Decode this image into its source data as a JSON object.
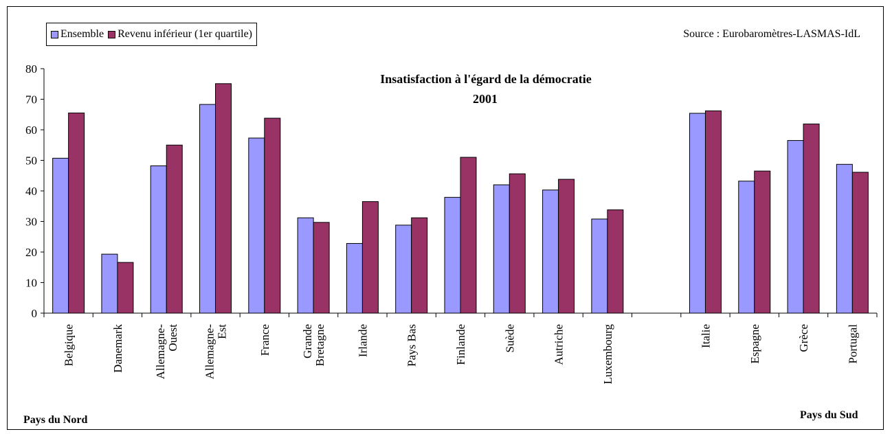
{
  "source": "Source : Eurobaromètres-LASMAS-IdL",
  "group_labels": {
    "north": "Pays du Nord",
    "south": "Pays du Sud"
  },
  "colors": {
    "ensemble": "#9999ff",
    "revenu": "#993366",
    "axis": "#000000"
  },
  "chart_data": {
    "type": "bar",
    "title": "Insatisfaction à l'égard de la démocratie",
    "subtitle": "2001",
    "xlabel": "",
    "ylabel": "",
    "ylim": [
      0,
      80
    ],
    "yticks": [
      0,
      10,
      20,
      30,
      40,
      50,
      60,
      70,
      80
    ],
    "grid": false,
    "legend": "top-left",
    "categories": [
      [
        "Belgique"
      ],
      [
        "Danemark"
      ],
      [
        "Allemagne-",
        "Ouest"
      ],
      [
        "Allemagne-",
        "Est"
      ],
      [
        "France"
      ],
      [
        "Grande",
        "Bretagne"
      ],
      [
        "Irlande"
      ],
      [
        "Pays Bas"
      ],
      [
        "Finlande"
      ],
      [
        "Suède"
      ],
      [
        "Autriche"
      ],
      [
        "Luxembourg"
      ],
      [
        ""
      ],
      [
        "Italie"
      ],
      [
        "Espagne"
      ],
      [
        "Grèce"
      ],
      [
        "Portugal"
      ]
    ],
    "series": [
      {
        "name": "Ensemble",
        "values": [
          50.7,
          19.3,
          48.2,
          68.3,
          57.3,
          31.2,
          22.8,
          28.8,
          37.9,
          42.0,
          40.3,
          30.8,
          null,
          65.4,
          43.2,
          56.5,
          48.7
        ]
      },
      {
        "name": "Revenu inférieur (1er quartile)",
        "values": [
          65.5,
          16.6,
          55.0,
          75.1,
          63.8,
          29.7,
          36.5,
          31.2,
          51.0,
          45.6,
          43.8,
          33.8,
          null,
          66.2,
          46.5,
          61.9,
          46.1
        ]
      }
    ]
  }
}
